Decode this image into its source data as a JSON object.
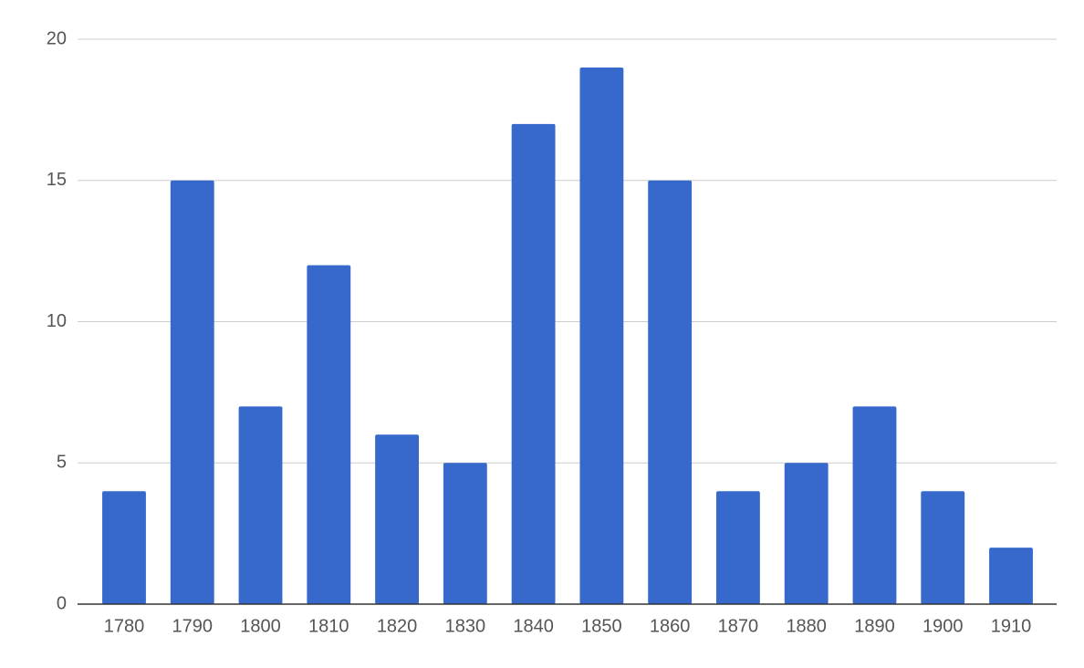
{
  "chart_data": {
    "type": "bar",
    "categories": [
      "1780",
      "1790",
      "1800",
      "1810",
      "1820",
      "1830",
      "1840",
      "1850",
      "1860",
      "1870",
      "1880",
      "1890",
      "1900",
      "1910"
    ],
    "values": [
      4,
      15,
      7,
      12,
      6,
      5,
      17,
      19,
      15,
      4,
      5,
      7,
      4,
      2
    ],
    "color": "#3769cc",
    "ylim": [
      0,
      20
    ],
    "yticks": [
      0,
      5,
      10,
      15,
      20
    ],
    "grid": true
  }
}
